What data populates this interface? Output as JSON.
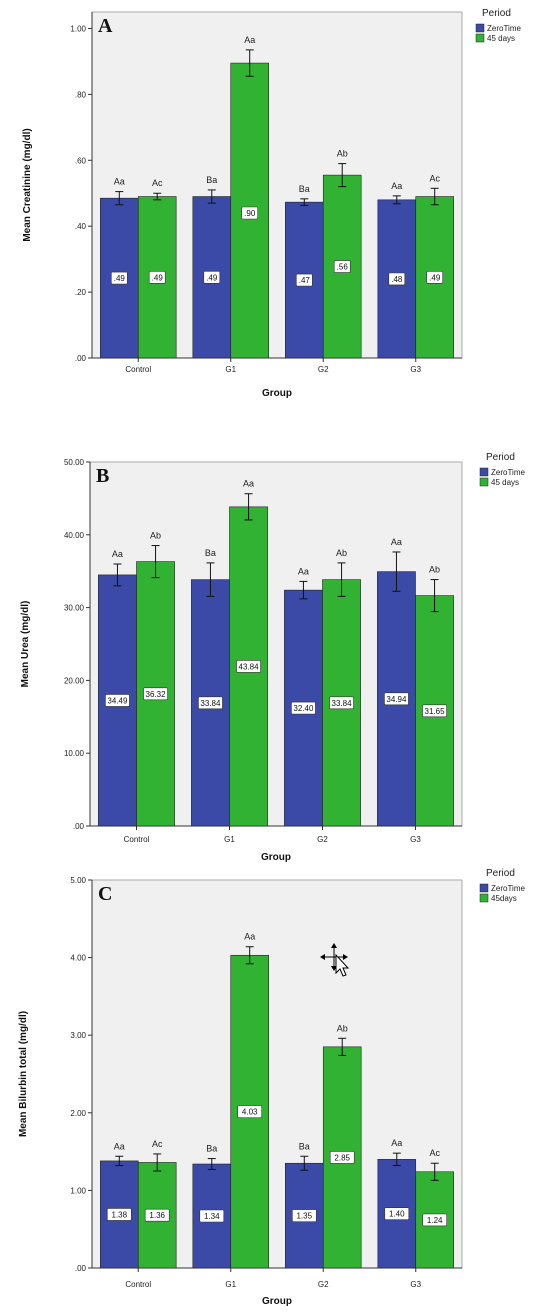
{
  "colors": {
    "zero": "#3b4aa6",
    "days45": "#32b233",
    "plotbg": "#f0f0f0",
    "frame": "#aaaaaa"
  },
  "cursor_icon": "move-cursor-icon",
  "chart_data": [
    {
      "type": "bar",
      "panel_letter": "A",
      "xlabel": "Group",
      "ylabel": "Mean Creatinine (mg/dl)",
      "categories": [
        "Control",
        "G1",
        "G2",
        "G3"
      ],
      "ylim": [
        0.0,
        1.05
      ],
      "yticks": [
        0.0,
        0.2,
        0.4,
        0.6,
        0.8,
        1.0
      ],
      "ytick_labels": [
        ".00",
        ".20",
        ".40",
        ".60",
        ".80",
        "1.00"
      ],
      "legend": {
        "title": "Period",
        "position": "top-right",
        "items": [
          "ZeroTime",
          "45 days"
        ]
      },
      "series": [
        {
          "name": "ZeroTime",
          "values": [
            0.485,
            0.49,
            0.473,
            0.48
          ],
          "errors": [
            0.02,
            0.02,
            0.01,
            0.012
          ],
          "box_labels": [
            ".49",
            ".49",
            ".47",
            ".48"
          ],
          "letters": [
            "Aa",
            "Ba",
            "Ba",
            "Aa"
          ]
        },
        {
          "name": "45 days",
          "values": [
            0.49,
            0.895,
            0.555,
            0.49
          ],
          "errors": [
            0.01,
            0.04,
            0.035,
            0.025
          ],
          "box_labels": [
            ".49",
            ".90",
            ".56",
            ".49"
          ],
          "letters": [
            "Ac",
            "Aa",
            "Ab",
            "Ac"
          ]
        }
      ]
    },
    {
      "type": "bar",
      "panel_letter": "B",
      "xlabel": "Group",
      "ylabel": "Mean Urea (mg/dl)",
      "categories": [
        "Control",
        "G1",
        "G2",
        "G3"
      ],
      "ylim": [
        0.0,
        50.0
      ],
      "yticks": [
        0,
        10,
        20,
        30,
        40,
        50
      ],
      "ytick_labels": [
        ".00",
        "10.00",
        "20.00",
        "30.00",
        "40.00",
        "50.00"
      ],
      "legend": {
        "title": "Period",
        "position": "top-right",
        "items": [
          "ZeroTime",
          "45 days"
        ]
      },
      "series": [
        {
          "name": "ZeroTime",
          "values": [
            34.49,
            33.84,
            32.4,
            34.94
          ],
          "errors": [
            1.5,
            2.3,
            1.2,
            2.7
          ],
          "box_labels": [
            "34.49",
            "33.84",
            "32.40",
            "34.94"
          ],
          "letters": [
            "Aa",
            "Ba",
            "Aa",
            "Aa"
          ]
        },
        {
          "name": "45 days",
          "values": [
            36.32,
            43.84,
            33.84,
            31.65
          ],
          "errors": [
            2.2,
            1.8,
            2.3,
            2.2
          ],
          "box_labels": [
            "36.32",
            "43.84",
            "33.84",
            "31.65"
          ],
          "letters": [
            "Ab",
            "Aa",
            "Ab",
            "Ab"
          ]
        }
      ]
    },
    {
      "type": "bar",
      "panel_letter": "C",
      "xlabel": "Group",
      "ylabel": "Mean Bilurbin total (mg/dl)",
      "categories": [
        "Control",
        "G1",
        "G2",
        "G3"
      ],
      "ylim": [
        0.0,
        5.0
      ],
      "yticks": [
        0,
        1,
        2,
        3,
        4,
        5
      ],
      "ytick_labels": [
        ".00",
        "1.00",
        "2.00",
        "3.00",
        "4.00",
        "5.00"
      ],
      "legend": {
        "title": "Period",
        "position": "top-right",
        "items": [
          "ZeroTime",
          "45days"
        ]
      },
      "series": [
        {
          "name": "ZeroTime",
          "values": [
            1.38,
            1.34,
            1.35,
            1.4
          ],
          "errors": [
            0.06,
            0.07,
            0.09,
            0.08
          ],
          "box_labels": [
            "1.38",
            "1.34",
            "1.35",
            "1.40"
          ],
          "letters": [
            "Aa",
            "Ba",
            "Ba",
            "Aa"
          ]
        },
        {
          "name": "45days",
          "values": [
            1.36,
            4.03,
            2.85,
            1.24
          ],
          "errors": [
            0.11,
            0.11,
            0.11,
            0.11
          ],
          "box_labels": [
            "1.36",
            "4.03",
            "2.85",
            "1.24"
          ],
          "letters": [
            "Ac",
            "Aa",
            "Ab",
            "Ac"
          ]
        }
      ]
    }
  ]
}
